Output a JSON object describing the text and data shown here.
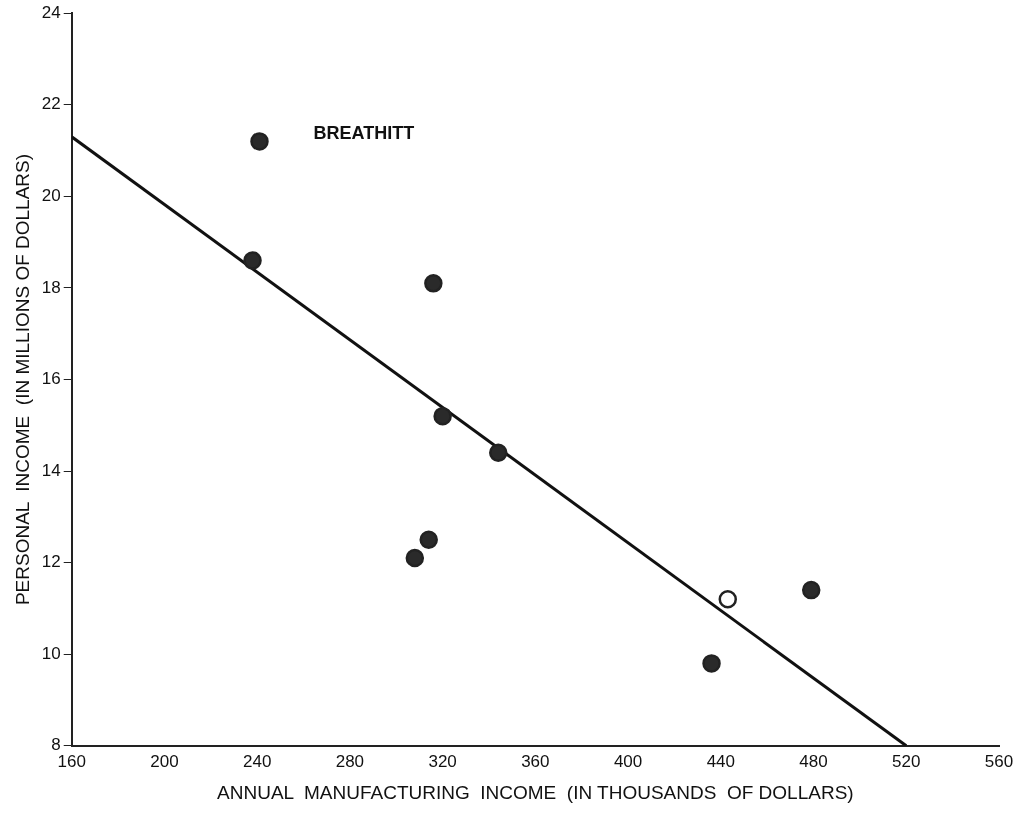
{
  "chart_data": {
    "type": "scatter",
    "xlabel": "ANNUAL  MANUFACTURING  INCOME  (IN THOUSANDS  OF DOLLARS)",
    "ylabel": "PERSONAL  INCOME  (IN MILLIONS OF DOLLARS)",
    "xlim": [
      160,
      560
    ],
    "xticks": [
      160,
      200,
      240,
      280,
      320,
      360,
      400,
      440,
      480,
      520,
      560
    ],
    "ylim": [
      8,
      24
    ],
    "yticks": [
      8,
      10,
      12,
      14,
      16,
      18,
      20,
      22,
      24
    ],
    "grid": false,
    "legend": false,
    "marker": "circle",
    "series": [
      {
        "color": "#2a2a2a",
        "x": [
          241,
          238,
          316,
          320,
          314,
          308,
          344,
          479,
          436
        ],
        "values": [
          21.2,
          18.6,
          18.1,
          15.2,
          12.5,
          12.1,
          14.4,
          11.4,
          9.8
        ]
      },
      {
        "color": "#ffffff",
        "x": [
          443
        ],
        "values": [
          11.2
        ]
      },
      {
        "type": "line",
        "color": "#111111",
        "x": [
          160,
          520
        ],
        "values": [
          21.3,
          8.0
        ],
        "marker": "none",
        "line_style": "solid"
      }
    ],
    "annotations": [
      "BREATHITT"
    ]
  }
}
